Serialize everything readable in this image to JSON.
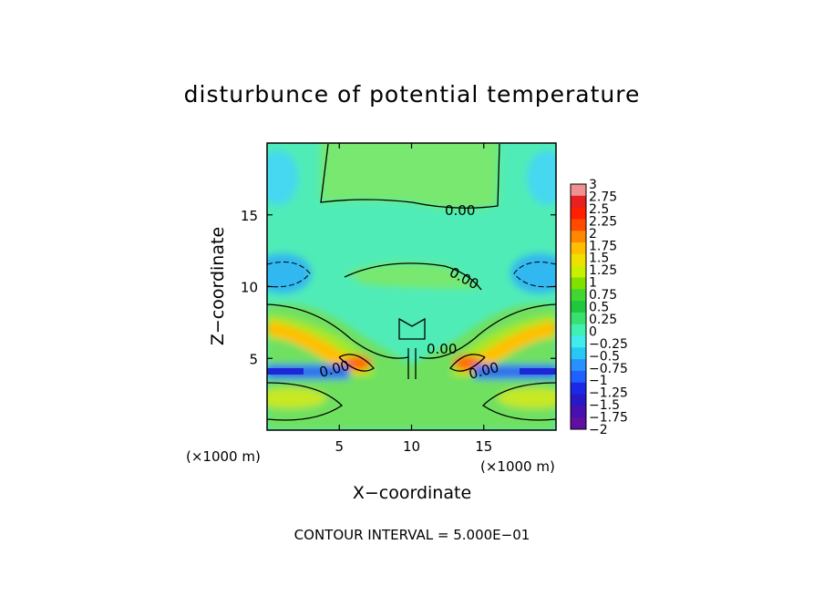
{
  "chart_data": {
    "type": "heatmap",
    "title": "disturbunce of potential temperature",
    "xlabel": "X−coordinate",
    "ylabel": "Z−coordinate",
    "x_unit": "(×1000 m)",
    "z_unit": "(×1000 m)",
    "xlim": [
      0,
      20
    ],
    "ylim": [
      0,
      20
    ],
    "xticks": [
      5,
      10,
      15
    ],
    "yticks": [
      5,
      10,
      15
    ],
    "contour_label": "0.00",
    "footer": "CONTOUR INTERVAL = 5.000E−01",
    "colorbar": {
      "min": -2,
      "max": 3,
      "step": 0.25,
      "labels": [
        "3",
        "2.75",
        "2.5",
        "2.25",
        "2",
        "1.75",
        "1.5",
        "1.25",
        "1",
        "0.75",
        "0.5",
        "0.25",
        "0",
        "−0.25",
        "−0.5",
        "−0.75",
        "−1",
        "−1.25",
        "−1.5",
        "−1.75",
        "−2"
      ],
      "colors": [
        "#f09090",
        "#e82020",
        "#ff2000",
        "#ff4a00",
        "#ff8800",
        "#ffbf00",
        "#f0e000",
        "#c8f000",
        "#80e000",
        "#40d830",
        "#20c840",
        "#38e070",
        "#40f0b0",
        "#40ecec",
        "#28c8f4",
        "#2890ff",
        "#2060ff",
        "#1c28e8",
        "#2818c8",
        "#4810b0",
        "#6010a0"
      ]
    }
  }
}
